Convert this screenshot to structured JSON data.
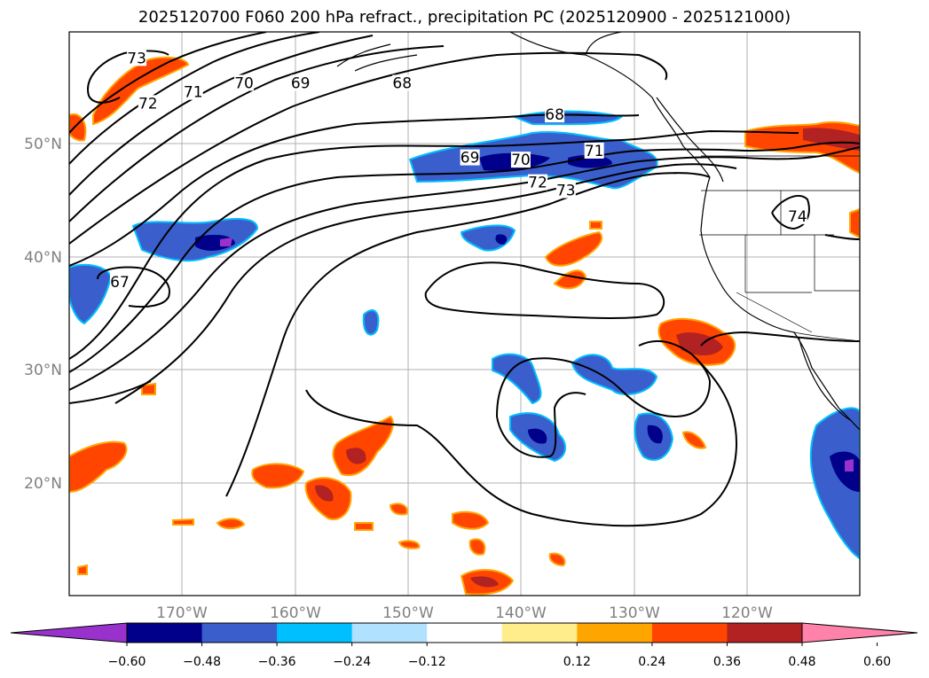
{
  "title": "2025120700 F060 200 hPa refract., precipitation PC (2025120900 - 2025121000)",
  "axes": {
    "lon_ticks": [
      "170°W",
      "160°W",
      "150°W",
      "140°W",
      "130°W",
      "120°W"
    ],
    "lat_ticks": [
      "50°N",
      "40°N",
      "30°N",
      "20°N"
    ],
    "tick_color": "#808080",
    "grid": true
  },
  "contour_labels": [
    {
      "text": "73",
      "lon": -174.0,
      "lat": 57.5
    },
    {
      "text": "72",
      "lon": -173.0,
      "lat": 53.5
    },
    {
      "text": "71",
      "lon": -169.0,
      "lat": 54.5
    },
    {
      "text": "70",
      "lon": -164.5,
      "lat": 55.3
    },
    {
      "text": "69",
      "lon": -159.5,
      "lat": 55.3
    },
    {
      "text": "68",
      "lon": -150.5,
      "lat": 55.3
    },
    {
      "text": "68",
      "lon": -137.0,
      "lat": 52.5
    },
    {
      "text": "69",
      "lon": -144.5,
      "lat": 48.7
    },
    {
      "text": "70",
      "lon": -140.0,
      "lat": 48.5
    },
    {
      "text": "71",
      "lon": -133.5,
      "lat": 49.3
    },
    {
      "text": "72",
      "lon": -138.5,
      "lat": 46.5
    },
    {
      "text": "73",
      "lon": -136.0,
      "lat": 45.8
    },
    {
      "text": "74",
      "lon": -115.5,
      "lat": 43.5
    },
    {
      "text": "67",
      "lon": -175.5,
      "lat": 37.7
    }
  ],
  "colorbar": {
    "ticks": [
      "−0.60",
      "−0.48",
      "−0.36",
      "−0.24",
      "−0.12",
      "0.12",
      "0.24",
      "0.36",
      "0.48",
      "0.60"
    ],
    "colors": [
      "#9932cc",
      "#00008b",
      "#3a5fcd",
      "#00bfff",
      "#b0e2ff",
      "#ffffff",
      "#ffec8b",
      "#ffa500",
      "#ff4500",
      "#b22222",
      "#ff82ab"
    ]
  },
  "legend": {
    "negative": [
      "#9932cc",
      "#00008b",
      "#3a5fcd",
      "#00bfff",
      "#b0e2ff"
    ],
    "positive": [
      "#ffec8b",
      "#ffa500",
      "#ff4500",
      "#b22222"
    ]
  }
}
